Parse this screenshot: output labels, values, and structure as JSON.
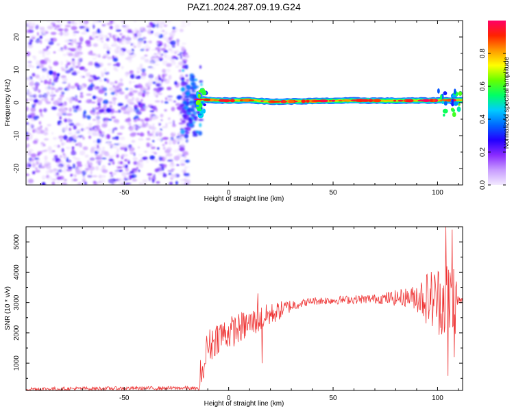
{
  "title": "PAZ1.2024.287.09.19.G24",
  "chart_data": [
    {
      "type": "heatmap",
      "xlabel": "Height of straight line (km)",
      "ylabel": "Frequency (Hz)",
      "xlim": [
        -97,
        112
      ],
      "ylim": [
        -25,
        25
      ],
      "xticks": [
        -50,
        0,
        50,
        100
      ],
      "yticks": [
        -20,
        -10,
        0,
        10,
        20
      ],
      "noise_region_x": [
        -97,
        -19
      ],
      "signal_band": {
        "x_range": [
          -14,
          112
        ],
        "center_hz": [
          {
            "x": -14,
            "hz": 1.0
          },
          {
            "x": 0,
            "hz": 0.6
          },
          {
            "x": 10,
            "hz": 0.8
          },
          {
            "x": 20,
            "hz": 0.3
          },
          {
            "x": 40,
            "hz": 0.5
          },
          {
            "x": 60,
            "hz": 0.7
          },
          {
            "x": 80,
            "hz": 0.6
          },
          {
            "x": 100,
            "hz": 0.7
          },
          {
            "x": 112,
            "hz": 0.8
          }
        ],
        "peak_amplitude": 1.0
      },
      "colorbar": {
        "label": "Normalized spectral amplitude",
        "range": [
          0.0,
          1.0
        ],
        "ticks": [
          0.0,
          0.2,
          0.4,
          0.6,
          0.8
        ],
        "tick_labels": [
          "0.0",
          "0.2",
          "0.4",
          "0.6",
          "0.8"
        ],
        "stops": [
          "#f3eaff",
          "#c89cff",
          "#8a2bff",
          "#2200ff",
          "#0066ff",
          "#00ccff",
          "#00ff66",
          "#66ff00",
          "#ffff00",
          "#ff9900",
          "#ff2200",
          "#ff0066"
        ]
      }
    },
    {
      "type": "line",
      "xlabel": "Height of straight line (km)",
      "ylabel": "SNR (10 * v/v)",
      "xlim": [
        -97,
        112
      ],
      "ylim": [
        100,
        5500
      ],
      "xticks": [
        -50,
        0,
        50,
        100
      ],
      "yticks": [
        1000,
        2000,
        3000,
        4000,
        5000
      ],
      "color": "#ee3333",
      "trend": [
        {
          "x": -97,
          "snr": 150
        },
        {
          "x": -20,
          "snr": 180
        },
        {
          "x": -14,
          "snr": 150
        },
        {
          "x": -10,
          "snr": 1500
        },
        {
          "x": -5,
          "snr": 1900
        },
        {
          "x": 0,
          "snr": 2000
        },
        {
          "x": 10,
          "snr": 2300
        },
        {
          "x": 20,
          "snr": 2600
        },
        {
          "x": 30,
          "snr": 2900
        },
        {
          "x": 40,
          "snr": 3050
        },
        {
          "x": 60,
          "snr": 3100
        },
        {
          "x": 80,
          "snr": 3150
        },
        {
          "x": 90,
          "snr": 3200
        },
        {
          "x": 100,
          "snr": 3100
        },
        {
          "x": 106,
          "snr": 3100
        },
        {
          "x": 112,
          "snr": 3050
        }
      ],
      "noise_amplitude": [
        {
          "x": -97,
          "amp": 60
        },
        {
          "x": -14,
          "amp": 60
        },
        {
          "x": -10,
          "amp": 600
        },
        {
          "x": 15,
          "amp": 450
        },
        {
          "x": 25,
          "amp": 300
        },
        {
          "x": 35,
          "amp": 130
        },
        {
          "x": 70,
          "amp": 150
        },
        {
          "x": 88,
          "amp": 350
        },
        {
          "x": 95,
          "amp": 900
        },
        {
          "x": 103,
          "amp": 1300
        },
        {
          "x": 108,
          "amp": 1500
        },
        {
          "x": 110,
          "amp": 150
        },
        {
          "x": 112,
          "amp": 120
        }
      ],
      "spikes": [
        {
          "x": -13.5,
          "snr": 1100
        },
        {
          "x": -10.5,
          "snr": 1900
        },
        {
          "x": 14,
          "snr": 3300
        },
        {
          "x": 16,
          "snr": 1000
        },
        {
          "x": 104,
          "snr": 5500
        },
        {
          "x": 105,
          "snr": 580
        },
        {
          "x": 107,
          "snr": 5400
        },
        {
          "x": 108,
          "snr": 1200
        }
      ]
    }
  ]
}
